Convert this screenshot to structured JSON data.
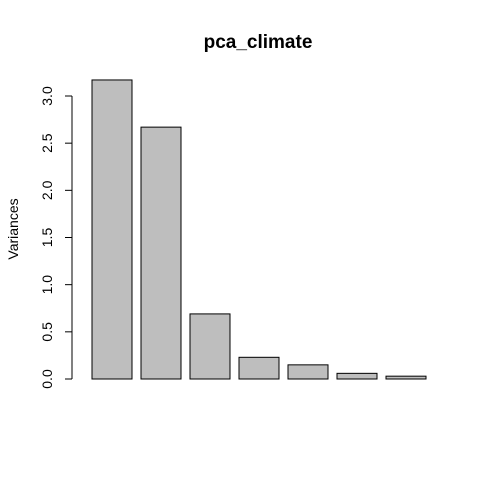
{
  "chart_data": {
    "type": "bar",
    "title": "pca_climate",
    "xlabel": "",
    "ylabel": "Variances",
    "categories": [
      "",
      "",
      "",
      "",
      "",
      "",
      ""
    ],
    "values": [
      3.17,
      2.67,
      0.69,
      0.23,
      0.15,
      0.06,
      0.03
    ],
    "ylim": [
      0,
      3.2
    ],
    "yticks": [
      0.0,
      0.5,
      1.0,
      1.5,
      2.0,
      2.5,
      3.0
    ],
    "ytick_labels": [
      "0.0",
      "0.5",
      "1.0",
      "1.5",
      "2.0",
      "2.5",
      "3.0"
    ],
    "grid": false,
    "legend": "none",
    "colors": {
      "bar_fill": "#bebebe",
      "bar_stroke": "#000000",
      "axis": "#000000",
      "background": "#ffffff"
    }
  }
}
